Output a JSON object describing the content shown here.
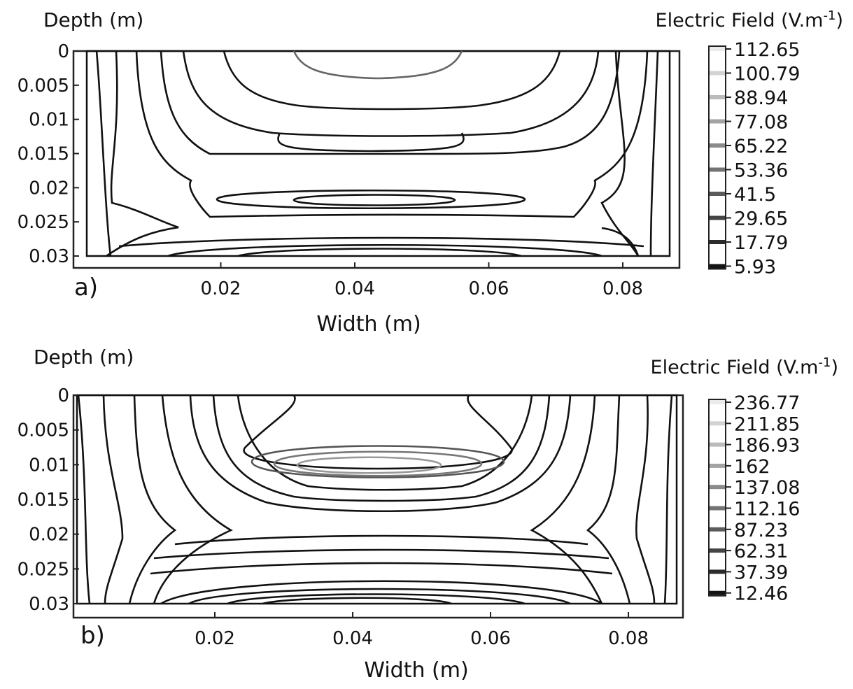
{
  "chart_data": [
    {
      "type": "contour",
      "panel_label": "a)",
      "xlabel": "Width (m)",
      "ylabel": "Depth (m)",
      "colorbar_title": "Electric Field (V.m",
      "colorbar_title_sup": "-1",
      "colorbar_title_end": ")",
      "x_ticks": [
        "0.02",
        "0.04",
        "0.06",
        "0.08"
      ],
      "x_tick_values": [
        0.02,
        0.04,
        0.06,
        0.08
      ],
      "y_ticks": [
        "0",
        "0.005",
        "0.01",
        "0.015",
        "0.02",
        "0.025",
        "0.03"
      ],
      "y_tick_values": [
        0,
        0.005,
        0.01,
        0.015,
        0.02,
        0.025,
        0.03
      ],
      "xlim": [
        0,
        0.087
      ],
      "ylim": [
        0,
        0.03
      ],
      "y_inverted": true,
      "levels": [
        112.65,
        100.79,
        88.94,
        77.08,
        65.22,
        53.36,
        41.5,
        29.65,
        17.79,
        5.93
      ],
      "level_labels": [
        "112.65",
        "100.79",
        "88.94",
        "77.08",
        "65.22",
        "53.36",
        "41.5",
        "29.65",
        "17.79",
        "5.93"
      ],
      "colormap": "grayscale",
      "grid": false
    },
    {
      "type": "contour",
      "panel_label": "b)",
      "xlabel": "Width (m)",
      "ylabel": "Depth (m)",
      "colorbar_title": "Electric Field (V.m",
      "colorbar_title_sup": "-1",
      "colorbar_title_end": ")",
      "x_ticks": [
        "0.02",
        "0.04",
        "0.06",
        "0.08"
      ],
      "x_tick_values": [
        0.02,
        0.04,
        0.06,
        0.08
      ],
      "y_ticks": [
        "0",
        "0.005",
        "0.01",
        "0.015",
        "0.02",
        "0.025",
        "0.03"
      ],
      "y_tick_values": [
        0,
        0.005,
        0.01,
        0.015,
        0.02,
        0.025,
        0.03
      ],
      "xlim": [
        0,
        0.087
      ],
      "ylim": [
        0,
        0.03
      ],
      "y_inverted": true,
      "levels": [
        236.77,
        211.85,
        186.93,
        162,
        137.08,
        112.16,
        87.23,
        62.31,
        37.39,
        12.46
      ],
      "level_labels": [
        "236.77",
        "211.85",
        "186.93",
        "162",
        "137.08",
        "112.16",
        "87.23",
        "62.31",
        "37.39",
        "12.46"
      ],
      "colormap": "grayscale",
      "grid": false
    }
  ]
}
